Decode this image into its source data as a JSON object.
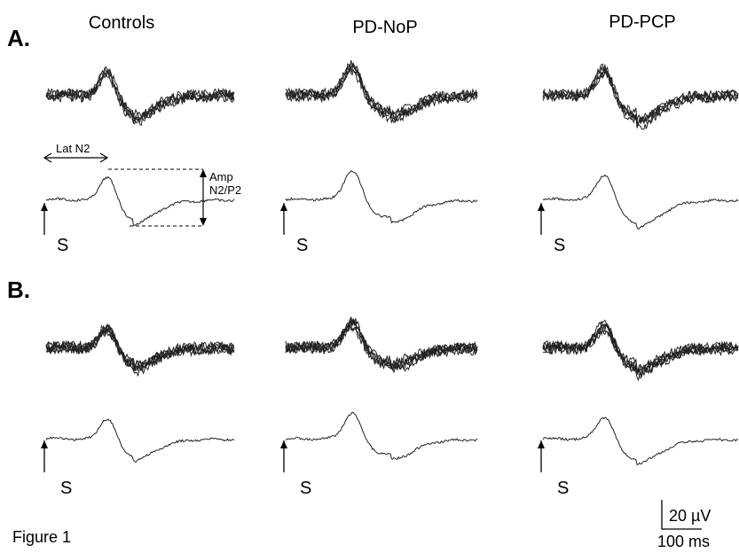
{
  "figure": {
    "caption": "Figure 1",
    "colors": {
      "ink": "#000000",
      "trace": "#222222",
      "background": "#ffffff"
    }
  },
  "panels": [
    {
      "label": "A."
    },
    {
      "label": "B."
    }
  ],
  "columns": [
    {
      "title": "Controls"
    },
    {
      "title": "PD-NoP"
    },
    {
      "title": "PD-PCP"
    }
  ],
  "stimulus": {
    "label": "S",
    "marker": "up-arrow-icon"
  },
  "annotations": {
    "latency": "Lat N2",
    "amplitude_line1": "Amp",
    "amplitude_line2": "N2/P2"
  },
  "scale_bar": {
    "amplitude": "20 µV",
    "time": "100 ms"
  }
}
